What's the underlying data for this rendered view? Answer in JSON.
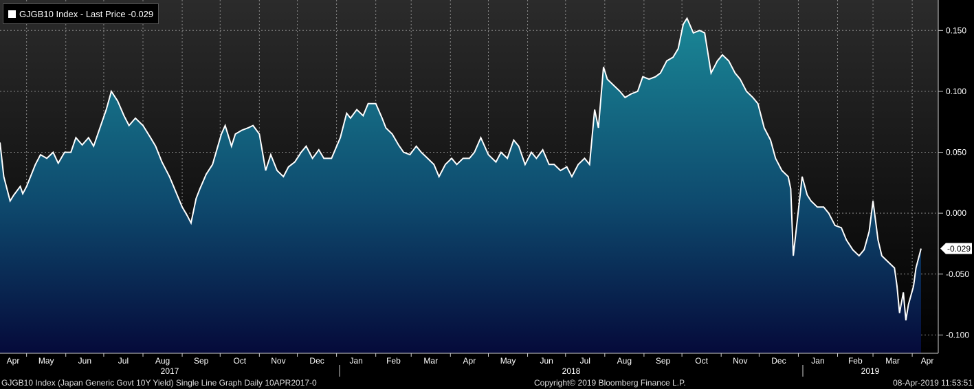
{
  "legend": {
    "label": "GJGB10 Index - Last Price -0.029"
  },
  "footer": {
    "left": "GJGB10 Index (Japan Generic Govt 10Y Yield) Single Line Graph  Daily 10APR2017-0",
    "center": "Copyright© 2019 Bloomberg Finance L.P.",
    "right": "08-Apr-2019 11:53:51"
  },
  "colors": {
    "line": "#ffffff",
    "fill_top": "#1a8796",
    "fill_bottom": "#050a3a",
    "bg_top": "#2a2a2a",
    "bg_bottom": "#000000",
    "grid": "#7a7a7a"
  },
  "chart_data": {
    "type": "area",
    "title": "",
    "series": [
      {
        "name": "GJGB10 Index",
        "last": -0.029
      }
    ],
    "ylim": [
      -0.115,
      0.175
    ],
    "yticks": [
      0.15,
      0.1,
      0.05,
      0.0,
      -0.05,
      -0.1
    ],
    "ytick_labels": [
      "0.150",
      "0.100",
      "0.050",
      "0.000",
      "-0.050",
      "-0.100"
    ],
    "last_value_label": "-0.029",
    "x_months": [
      "Apr",
      "May",
      "Jun",
      "Jul",
      "Aug",
      "Sep",
      "Oct",
      "Nov",
      "Dec",
      "Jan",
      "Feb",
      "Mar",
      "Apr",
      "May",
      "Jun",
      "Jul",
      "Aug",
      "Sep",
      "Oct",
      "Nov",
      "Dec",
      "Jan",
      "Feb",
      "Mar",
      "Apr"
    ],
    "x_years": [
      "2017",
      "2018",
      "2019"
    ],
    "x_start": "2017-04-10",
    "x_end": "2019-04-08",
    "points": [
      [
        "2017-04-10",
        0.058
      ],
      [
        "2017-04-13",
        0.03
      ],
      [
        "2017-04-18",
        0.01
      ],
      [
        "2017-04-21",
        0.015
      ],
      [
        "2017-04-26",
        0.022
      ],
      [
        "2017-04-28",
        0.016
      ],
      [
        "2017-05-01",
        0.022
      ],
      [
        "2017-05-08",
        0.04
      ],
      [
        "2017-05-12",
        0.048
      ],
      [
        "2017-05-17",
        0.045
      ],
      [
        "2017-05-22",
        0.05
      ],
      [
        "2017-05-26",
        0.041
      ],
      [
        "2017-05-31",
        0.05
      ],
      [
        "2017-06-05",
        0.05
      ],
      [
        "2017-06-09",
        0.062
      ],
      [
        "2017-06-14",
        0.056
      ],
      [
        "2017-06-19",
        0.062
      ],
      [
        "2017-06-23",
        0.055
      ],
      [
        "2017-06-28",
        0.07
      ],
      [
        "2017-07-03",
        0.085
      ],
      [
        "2017-07-07",
        0.1
      ],
      [
        "2017-07-12",
        0.092
      ],
      [
        "2017-07-17",
        0.08
      ],
      [
        "2017-07-21",
        0.072
      ],
      [
        "2017-07-26",
        0.078
      ],
      [
        "2017-08-01",
        0.072
      ],
      [
        "2017-08-07",
        0.062
      ],
      [
        "2017-08-11",
        0.055
      ],
      [
        "2017-08-16",
        0.042
      ],
      [
        "2017-08-22",
        0.03
      ],
      [
        "2017-08-28",
        0.015
      ],
      [
        "2017-09-01",
        0.005
      ],
      [
        "2017-09-05",
        -0.002
      ],
      [
        "2017-09-08",
        -0.008
      ],
      [
        "2017-09-12",
        0.012
      ],
      [
        "2017-09-15",
        0.02
      ],
      [
        "2017-09-20",
        0.032
      ],
      [
        "2017-09-25",
        0.04
      ],
      [
        "2017-10-02",
        0.065
      ],
      [
        "2017-10-05",
        0.072
      ],
      [
        "2017-10-10",
        0.055
      ],
      [
        "2017-10-13",
        0.065
      ],
      [
        "2017-10-18",
        0.068
      ],
      [
        "2017-10-23",
        0.07
      ],
      [
        "2017-10-27",
        0.072
      ],
      [
        "2017-11-01",
        0.065
      ],
      [
        "2017-11-06",
        0.035
      ],
      [
        "2017-11-10",
        0.048
      ],
      [
        "2017-11-15",
        0.035
      ],
      [
        "2017-11-20",
        0.03
      ],
      [
        "2017-11-24",
        0.038
      ],
      [
        "2017-11-29",
        0.042
      ],
      [
        "2017-12-04",
        0.05
      ],
      [
        "2017-12-08",
        0.055
      ],
      [
        "2017-12-13",
        0.045
      ],
      [
        "2017-12-18",
        0.052
      ],
      [
        "2017-12-22",
        0.045
      ],
      [
        "2017-12-28",
        0.045
      ],
      [
        "2018-01-04",
        0.062
      ],
      [
        "2018-01-09",
        0.082
      ],
      [
        "2018-01-12",
        0.078
      ],
      [
        "2018-01-17",
        0.085
      ],
      [
        "2018-01-22",
        0.08
      ],
      [
        "2018-01-26",
        0.09
      ],
      [
        "2018-02-01",
        0.09
      ],
      [
        "2018-02-06",
        0.078
      ],
      [
        "2018-02-09",
        0.07
      ],
      [
        "2018-02-14",
        0.065
      ],
      [
        "2018-02-19",
        0.056
      ],
      [
        "2018-02-23",
        0.05
      ],
      [
        "2018-02-28",
        0.048
      ],
      [
        "2018-03-05",
        0.055
      ],
      [
        "2018-03-09",
        0.05
      ],
      [
        "2018-03-14",
        0.045
      ],
      [
        "2018-03-19",
        0.04
      ],
      [
        "2018-03-23",
        0.03
      ],
      [
        "2018-03-28",
        0.04
      ],
      [
        "2018-04-02",
        0.045
      ],
      [
        "2018-04-06",
        0.04
      ],
      [
        "2018-04-11",
        0.045
      ],
      [
        "2018-04-16",
        0.045
      ],
      [
        "2018-04-20",
        0.05
      ],
      [
        "2018-04-25",
        0.062
      ],
      [
        "2018-05-01",
        0.048
      ],
      [
        "2018-05-07",
        0.042
      ],
      [
        "2018-05-11",
        0.05
      ],
      [
        "2018-05-16",
        0.045
      ],
      [
        "2018-05-21",
        0.06
      ],
      [
        "2018-05-25",
        0.055
      ],
      [
        "2018-05-30",
        0.04
      ],
      [
        "2018-06-04",
        0.05
      ],
      [
        "2018-06-08",
        0.045
      ],
      [
        "2018-06-13",
        0.052
      ],
      [
        "2018-06-18",
        0.04
      ],
      [
        "2018-06-22",
        0.04
      ],
      [
        "2018-06-27",
        0.035
      ],
      [
        "2018-07-02",
        0.038
      ],
      [
        "2018-07-06",
        0.03
      ],
      [
        "2018-07-11",
        0.04
      ],
      [
        "2018-07-16",
        0.045
      ],
      [
        "2018-07-20",
        0.04
      ],
      [
        "2018-07-24",
        0.085
      ],
      [
        "2018-07-27",
        0.07
      ],
      [
        "2018-07-31",
        0.12
      ],
      [
        "2018-08-03",
        0.11
      ],
      [
        "2018-08-08",
        0.105
      ],
      [
        "2018-08-13",
        0.1
      ],
      [
        "2018-08-17",
        0.095
      ],
      [
        "2018-08-22",
        0.098
      ],
      [
        "2018-08-27",
        0.1
      ],
      [
        "2018-08-31",
        0.112
      ],
      [
        "2018-09-05",
        0.11
      ],
      [
        "2018-09-10",
        0.112
      ],
      [
        "2018-09-14",
        0.115
      ],
      [
        "2018-09-19",
        0.125
      ],
      [
        "2018-09-24",
        0.128
      ],
      [
        "2018-09-28",
        0.135
      ],
      [
        "2018-10-02",
        0.155
      ],
      [
        "2018-10-05",
        0.16
      ],
      [
        "2018-10-10",
        0.148
      ],
      [
        "2018-10-15",
        0.15
      ],
      [
        "2018-10-19",
        0.148
      ],
      [
        "2018-10-24",
        0.115
      ],
      [
        "2018-10-29",
        0.125
      ],
      [
        "2018-11-02",
        0.13
      ],
      [
        "2018-11-07",
        0.125
      ],
      [
        "2018-11-12",
        0.115
      ],
      [
        "2018-11-16",
        0.11
      ],
      [
        "2018-11-21",
        0.1
      ],
      [
        "2018-11-26",
        0.095
      ],
      [
        "2018-11-30",
        0.09
      ],
      [
        "2018-12-05",
        0.07
      ],
      [
        "2018-12-10",
        0.06
      ],
      [
        "2018-12-14",
        0.045
      ],
      [
        "2018-12-19",
        0.035
      ],
      [
        "2018-12-24",
        0.03
      ],
      [
        "2018-12-26",
        0.02
      ],
      [
        "2018-12-28",
        -0.035
      ],
      [
        "2019-01-04",
        0.03
      ],
      [
        "2019-01-08",
        0.015
      ],
      [
        "2019-01-11",
        0.01
      ],
      [
        "2019-01-16",
        0.005
      ],
      [
        "2019-01-21",
        0.005
      ],
      [
        "2019-01-25",
        0.0
      ],
      [
        "2019-01-30",
        -0.01
      ],
      [
        "2019-02-04",
        -0.012
      ],
      [
        "2019-02-08",
        -0.022
      ],
      [
        "2019-02-13",
        -0.03
      ],
      [
        "2019-02-18",
        -0.035
      ],
      [
        "2019-02-22",
        -0.03
      ],
      [
        "2019-02-26",
        -0.015
      ],
      [
        "2019-03-01",
        0.01
      ],
      [
        "2019-03-05",
        -0.022
      ],
      [
        "2019-03-08",
        -0.035
      ],
      [
        "2019-03-13",
        -0.04
      ],
      [
        "2019-03-18",
        -0.045
      ],
      [
        "2019-03-20",
        -0.06
      ],
      [
        "2019-03-22",
        -0.082
      ],
      [
        "2019-03-25",
        -0.065
      ],
      [
        "2019-03-27",
        -0.088
      ],
      [
        "2019-03-29",
        -0.075
      ],
      [
        "2019-04-02",
        -0.06
      ],
      [
        "2019-04-04",
        -0.045
      ],
      [
        "2019-04-08",
        -0.029
      ]
    ]
  }
}
